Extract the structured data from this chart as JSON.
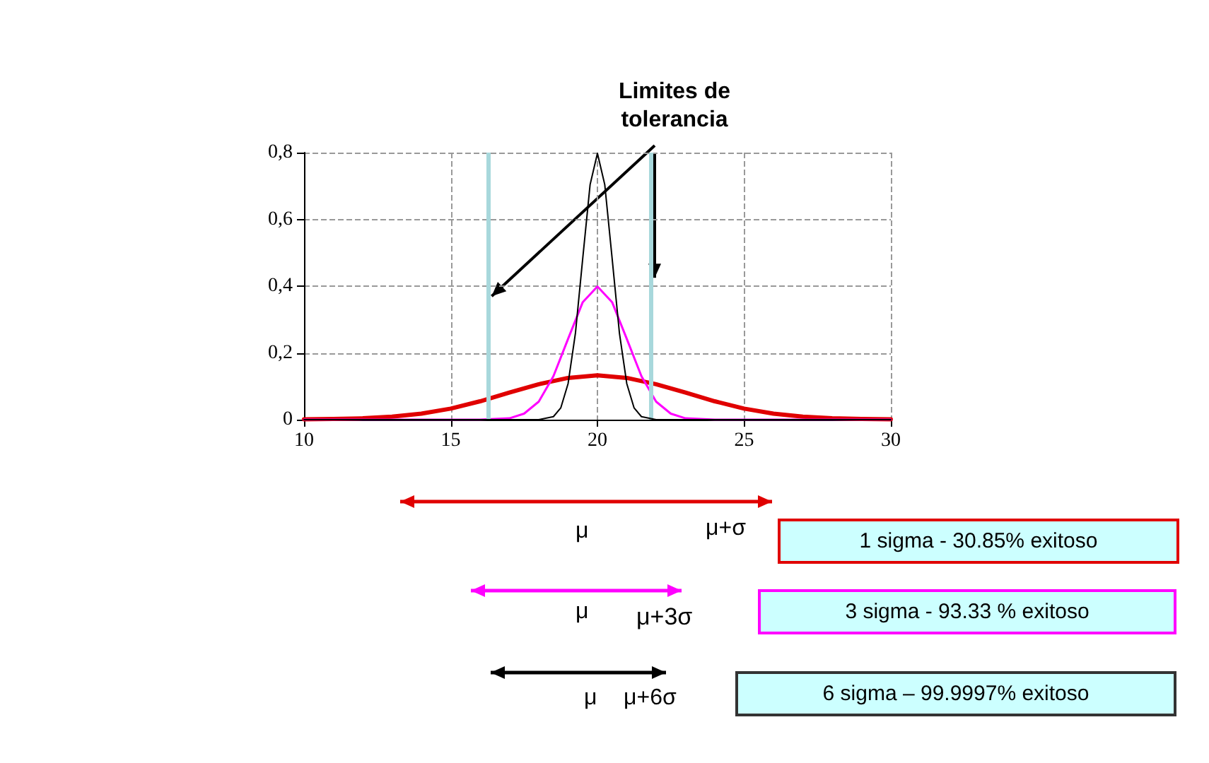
{
  "chart_data": {
    "type": "line",
    "xlim": [
      10,
      30
    ],
    "xticks": [
      10,
      15,
      20,
      25,
      30
    ],
    "ylim": [
      0,
      0.8
    ],
    "yticks": [
      0,
      {
        "value": 0.2,
        "label": "0,2"
      },
      {
        "value": 0.4,
        "label": "0,4"
      },
      {
        "value": 0.6,
        "label": "0,6"
      },
      {
        "value": 0.8,
        "label": "0,8"
      }
    ],
    "grid": true,
    "marker": "none",
    "line_style": "solid",
    "series": [
      {
        "color": "#e00000",
        "x": [
          10,
          11,
          12,
          13,
          14,
          15,
          16,
          17,
          18,
          19,
          20,
          21,
          22,
          23,
          24,
          25,
          26,
          27,
          28,
          29,
          30
        ],
        "values": [
          0.001,
          0.002,
          0.004,
          0.009,
          0.018,
          0.033,
          0.055,
          0.081,
          0.106,
          0.125,
          0.133,
          0.125,
          0.106,
          0.081,
          0.055,
          0.033,
          0.018,
          0.009,
          0.004,
          0.002,
          0.001
        ]
      },
      {
        "color": "#ff00ff",
        "x": [
          10,
          16,
          17,
          17.5,
          18,
          18.5,
          19,
          19.5,
          20,
          20.5,
          21,
          21.5,
          22,
          22.5,
          23,
          24,
          30
        ],
        "values": [
          0,
          0,
          0.004,
          0.018,
          0.054,
          0.13,
          0.242,
          0.352,
          0.399,
          0.352,
          0.242,
          0.13,
          0.054,
          0.018,
          0.004,
          0,
          0
        ]
      },
      {
        "color": "#000000",
        "x": [
          10,
          18,
          18.5,
          18.75,
          19,
          19.25,
          19.5,
          19.75,
          20,
          20.25,
          20.5,
          20.75,
          21,
          21.25,
          21.5,
          22,
          30
        ],
        "values": [
          0,
          0,
          0.009,
          0.035,
          0.108,
          0.259,
          0.484,
          0.704,
          0.798,
          0.704,
          0.484,
          0.259,
          0.108,
          0.035,
          0.009,
          0,
          0
        ]
      }
    ],
    "ref_lines": [
      {
        "axis": "x",
        "value": 16.3,
        "color": "#a8d8dc"
      },
      {
        "axis": "x",
        "value": 21.8,
        "color": "#a8d8dc"
      }
    ],
    "annotations": [
      {
        "text": "Limites de\ntolerancia",
        "x": 16.3,
        "y": 0.37
      },
      "μ",
      "μ+σ",
      "1 sigma - 30.85% exitoso",
      "μ",
      "μ+3σ",
      "3 sigma - 93.33 % exitoso",
      "μ",
      "μ+6σ",
      "6 sigma – 99.9997% exitoso"
    ]
  }
}
